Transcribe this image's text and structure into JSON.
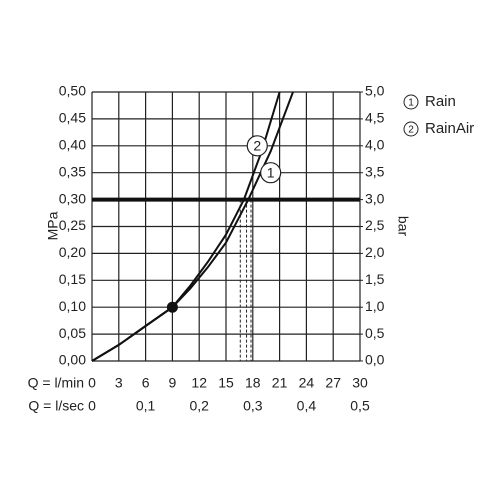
{
  "chart_data": {
    "type": "line",
    "xlabel": "Q = l/min",
    "x2label": "Q = l/sec",
    "ylabel": "MPa",
    "y2label": "bar",
    "xlim": [
      0,
      30
    ],
    "xticks": [
      0,
      3,
      6,
      9,
      12,
      15,
      18,
      21,
      24,
      27,
      30
    ],
    "x2lim": [
      0,
      0.5
    ],
    "x2ticks": [
      0,
      {
        "value": 0.1,
        "label": "0,1"
      },
      {
        "value": 0.2,
        "label": "0,2"
      },
      {
        "value": 0.3,
        "label": "0,3"
      },
      {
        "value": 0.4,
        "label": "0,4"
      },
      {
        "value": 0.5,
        "label": "0,5"
      }
    ],
    "ylim": [
      0,
      0.5
    ],
    "yticks": [
      {
        "value": 0,
        "label": "0,00"
      },
      {
        "value": 0.05,
        "label": "0,05"
      },
      {
        "value": 0.1,
        "label": "0,10"
      },
      {
        "value": 0.15,
        "label": "0,15"
      },
      {
        "value": 0.2,
        "label": "0,20"
      },
      {
        "value": 0.25,
        "label": "0,25"
      },
      {
        "value": 0.3,
        "label": "0,30"
      },
      {
        "value": 0.35,
        "label": "0,35"
      },
      {
        "value": 0.4,
        "label": "0,40"
      },
      {
        "value": 0.45,
        "label": "0,45"
      },
      {
        "value": 0.5,
        "label": "0,50"
      }
    ],
    "y2lim": [
      0,
      5
    ],
    "y2ticks": [
      {
        "value": 0,
        "label": "0,0"
      },
      {
        "value": 0.5,
        "label": "0,5"
      },
      {
        "value": 1,
        "label": "1,0"
      },
      {
        "value": 1.5,
        "label": "1,5"
      },
      {
        "value": 2,
        "label": "2,0"
      },
      {
        "value": 2.5,
        "label": "2,5"
      },
      {
        "value": 3,
        "label": "3,0"
      },
      {
        "value": 3.5,
        "label": "3,5"
      },
      {
        "value": 4,
        "label": "4,0"
      },
      {
        "value": 4.5,
        "label": "4,5"
      },
      {
        "value": 5,
        "label": "5,0"
      }
    ],
    "grid": true,
    "threshold": 0.3,
    "drop_lines": [
      16.6,
      17.3,
      17.8
    ],
    "point": {
      "x": 9,
      "y": 0.1
    },
    "series": [
      {
        "name": "Rain",
        "marker": "1",
        "color": "#111",
        "x": [
          0,
          3,
          6,
          9,
          11,
          13,
          15,
          17.5,
          20,
          22.5
        ],
        "values": [
          0,
          0.03,
          0.065,
          0.1,
          0.135,
          0.175,
          0.22,
          0.3,
          0.39,
          0.5
        ],
        "marker_at": [
          20,
          0.35
        ]
      },
      {
        "name": "RainAir",
        "marker": "2",
        "color": "#111",
        "x": [
          0,
          3,
          6,
          9,
          11,
          13,
          15,
          17,
          19,
          21
        ],
        "values": [
          0,
          0.03,
          0.065,
          0.1,
          0.14,
          0.185,
          0.235,
          0.3,
          0.39,
          0.5
        ],
        "marker_at": [
          18.5,
          0.4
        ]
      }
    ]
  }
}
